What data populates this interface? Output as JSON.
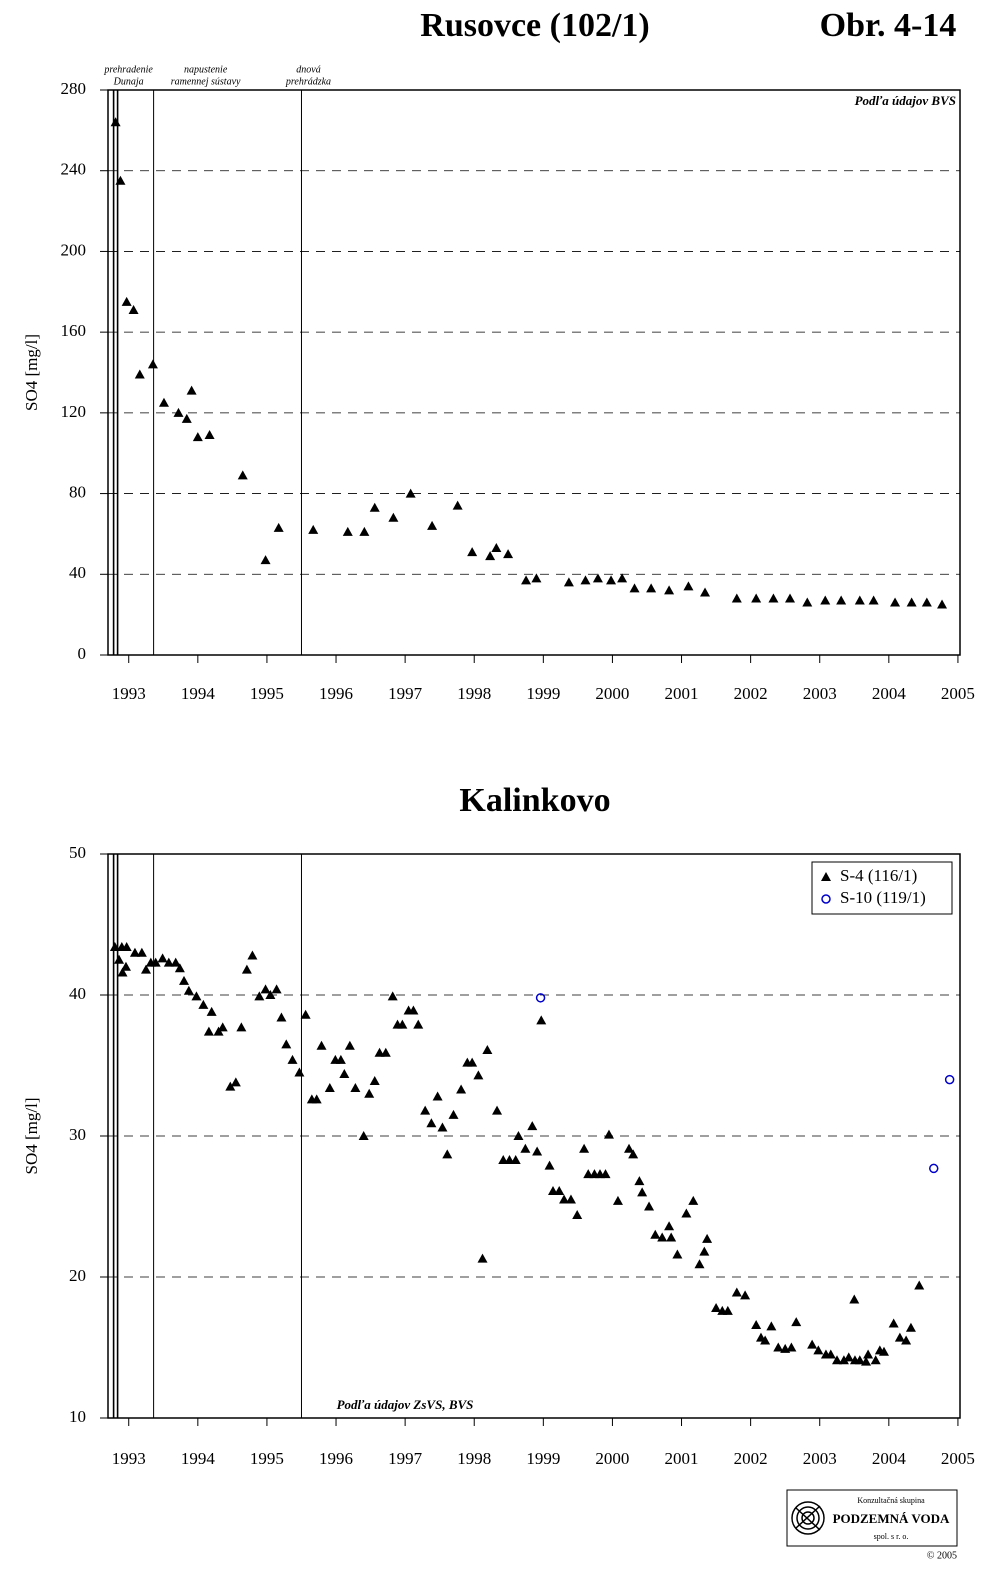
{
  "figure_label": "Obr. 4-14",
  "logo": {
    "line1": "Konzultačná skupina",
    "name": "PODZEMNÁ VODA",
    "line3": "spol. s r. o.",
    "copyright": "© 2005"
  },
  "chart_data": [
    {
      "type": "scatter",
      "title": "Rusovce (102/1)",
      "ylabel": "SO4 [mg/l]",
      "note": "Podľa údajov BVS",
      "note_corner": "upper right",
      "xlim": [
        1992.7,
        2005.03
      ],
      "xticks": [
        1993,
        1994,
        1995,
        1996,
        1997,
        1998,
        1999,
        2000,
        2001,
        2002,
        2003,
        2004,
        2005
      ],
      "ylim": [
        0,
        280
      ],
      "yticks": [
        0,
        40,
        80,
        120,
        160,
        200,
        240,
        280
      ],
      "grid": true,
      "events": [
        {
          "x": 1992.81,
          "label": [
            "prehradenie",
            "Dunaja"
          ]
        },
        {
          "x": 1993.36,
          "label": [
            "napustenie",
            "ramennej sústavy"
          ]
        },
        {
          "x": 1995.5,
          "label": [
            "dnová",
            "prehrádzka"
          ]
        }
      ],
      "marker": "triangle",
      "color": "#000000",
      "x": [
        1992.81,
        1992.88,
        1992.97,
        1993.07,
        1993.16,
        1993.35,
        1993.51,
        1993.72,
        1993.84,
        1993.91,
        1994.0,
        1994.17,
        1994.65,
        1994.98,
        1995.17,
        1995.67,
        1996.17,
        1996.41,
        1996.56,
        1996.83,
        1997.08,
        1997.39,
        1997.76,
        1997.97,
        1998.23,
        1998.32,
        1998.49,
        1998.75,
        1998.9,
        1999.37,
        1999.61,
        1999.79,
        1999.98,
        2000.14,
        2000.32,
        2000.56,
        2000.82,
        2001.1,
        2001.34,
        2001.8,
        2002.08,
        2002.33,
        2002.57,
        2002.82,
        2003.08,
        2003.31,
        2003.58,
        2003.78,
        2004.09,
        2004.33,
        2004.55,
        2004.77
      ],
      "values": [
        264,
        235,
        175,
        171,
        139,
        144,
        125,
        120,
        117,
        131,
        108,
        109,
        89,
        47,
        63,
        62,
        61,
        61,
        73,
        68,
        80,
        64,
        74,
        51,
        49,
        53,
        50,
        37,
        38,
        36,
        37,
        38,
        37,
        38,
        33,
        33,
        32,
        34,
        31,
        28,
        28,
        28,
        28,
        26,
        27,
        27,
        27,
        27,
        26,
        26,
        26,
        25
      ]
    },
    {
      "type": "scatter",
      "title": "Kalinkovo",
      "ylabel": "SO4 [mg/l]",
      "note": "Podľa údajov ZsVS, BVS",
      "note_corner": "lower center",
      "xlim": [
        1992.7,
        2005.03
      ],
      "xticks": [
        1993,
        1994,
        1995,
        1996,
        1997,
        1998,
        1999,
        2000,
        2001,
        2002,
        2003,
        2004,
        2005
      ],
      "ylim": [
        10,
        50
      ],
      "yticks": [
        10,
        20,
        30,
        40,
        50
      ],
      "grid": true,
      "legend": "upper right",
      "events": [
        {
          "x": 1992.81
        },
        {
          "x": 1993.36
        },
        {
          "x": 1995.5
        }
      ],
      "series": [
        {
          "name": "S-4 (116/1)",
          "color": "#000000",
          "marker": "triangle",
          "x": [
            1992.8,
            1992.86,
            1992.9,
            1992.91,
            1992.96,
            1992.97,
            1993.09,
            1993.19,
            1993.25,
            1993.32,
            1993.39,
            1993.49,
            1993.58,
            1993.68,
            1993.74,
            1993.8,
            1993.87,
            1993.98,
            1994.08,
            1994.16,
            1994.2,
            1994.3,
            1994.36,
            1994.47,
            1994.55,
            1994.63,
            1994.71,
            1994.79,
            1994.89,
            1994.98,
            1995.05,
            1995.14,
            1995.21,
            1995.28,
            1995.37,
            1995.47,
            1995.56,
            1995.65,
            1995.72,
            1995.79,
            1995.91,
            1995.99,
            1996.07,
            1996.12,
            1996.2,
            1996.28,
            1996.4,
            1996.48,
            1996.56,
            1996.63,
            1996.72,
            1996.82,
            1996.89,
            1996.96,
            1997.05,
            1997.12,
            1997.19,
            1997.29,
            1997.38,
            1997.47,
            1997.54,
            1997.61,
            1997.7,
            1997.81,
            1997.9,
            1997.97,
            1998.06,
            1998.12,
            1998.19,
            1998.33,
            1998.42,
            1998.51,
            1998.6,
            1998.64,
            1998.74,
            1998.84,
            1998.91,
            1998.97,
            1999.09,
            1999.14,
            1999.23,
            1999.3,
            1999.4,
            1999.49,
            1999.59,
            1999.65,
            1999.74,
            1999.82,
            1999.9,
            1999.95,
            2000.08,
            2000.24,
            2000.3,
            2000.39,
            2000.43,
            2000.53,
            2000.62,
            2000.72,
            2000.82,
            2000.85,
            2000.94,
            2001.07,
            2001.17,
            2001.26,
            2001.33,
            2001.37,
            2001.5,
            2001.59,
            2001.67,
            2001.8,
            2001.92,
            2002.08,
            2002.15,
            2002.21,
            2002.3,
            2002.4,
            2002.5,
            2002.59,
            2002.66,
            2002.89,
            2002.98,
            2003.09,
            2003.16,
            2003.25,
            2003.35,
            2003.42,
            2003.5,
            2003.51,
            2003.58,
            2003.67,
            2003.7,
            2003.81,
            2003.87,
            2003.93,
            2004.07,
            2004.16,
            2004.25,
            2004.32,
            2004.44
          ],
          "values": [
            43.4,
            42.5,
            43.4,
            41.6,
            42.0,
            43.4,
            43.0,
            43.0,
            41.8,
            42.3,
            42.3,
            42.6,
            42.3,
            42.3,
            41.9,
            41.0,
            40.3,
            39.9,
            39.3,
            37.4,
            38.8,
            37.4,
            37.7,
            33.5,
            33.8,
            37.7,
            41.8,
            42.8,
            39.9,
            40.4,
            40.0,
            40.4,
            38.4,
            36.5,
            35.4,
            34.5,
            38.6,
            32.6,
            32.6,
            36.4,
            33.4,
            35.4,
            35.4,
            34.4,
            36.4,
            33.4,
            30.0,
            33.0,
            33.9,
            35.9,
            35.9,
            39.9,
            37.9,
            37.9,
            38.9,
            38.9,
            37.9,
            31.8,
            30.9,
            32.8,
            30.6,
            28.7,
            31.5,
            33.3,
            35.2,
            35.2,
            34.3,
            21.3,
            36.1,
            31.8,
            28.3,
            28.3,
            28.3,
            30.0,
            29.1,
            30.7,
            28.9,
            38.2,
            27.9,
            26.1,
            26.1,
            25.5,
            25.5,
            24.4,
            29.1,
            27.3,
            27.3,
            27.3,
            27.3,
            30.1,
            25.4,
            29.1,
            28.7,
            26.8,
            26.0,
            25.0,
            23.0,
            22.8,
            23.6,
            22.8,
            21.6,
            24.5,
            25.4,
            20.9,
            21.8,
            22.7,
            17.8,
            17.6,
            17.6,
            18.9,
            18.7,
            16.6,
            15.7,
            15.5,
            16.5,
            15.0,
            14.9,
            15.0,
            16.8,
            15.2,
            14.8,
            14.5,
            14.5,
            14.1,
            14.1,
            14.3,
            18.4,
            14.1,
            14.1,
            14.0,
            14.5,
            14.1,
            14.8,
            14.7,
            16.7,
            15.7,
            15.5,
            16.4,
            19.4
          ]
        },
        {
          "name": "S-10 (119/1)",
          "color": "#0000cc",
          "marker": "circle",
          "x": [
            1998.96,
            2004.65,
            2004.88
          ],
          "values": [
            39.8,
            27.7,
            34.0
          ]
        }
      ]
    }
  ]
}
